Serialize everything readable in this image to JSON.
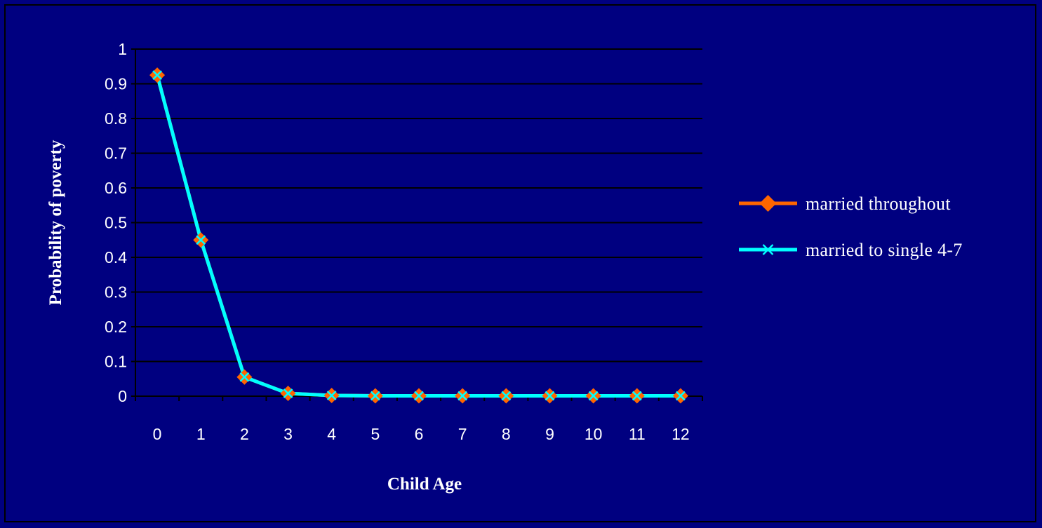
{
  "chart_data": {
    "type": "line",
    "title": "",
    "xlabel": "Child Age",
    "ylabel": "Probability of poverty",
    "x": [
      0,
      1,
      2,
      3,
      4,
      5,
      6,
      7,
      8,
      9,
      10,
      11,
      12
    ],
    "x_tick_labels": [
      "0",
      "1",
      "2",
      "3",
      "4",
      "5",
      "6",
      "7",
      "8",
      "9",
      "10",
      "11",
      "12"
    ],
    "y_tick_labels": [
      "0",
      "0.1",
      "0.2",
      "0.3",
      "0.4",
      "0.5",
      "0.6",
      "0.7",
      "0.8",
      "0.9",
      "1"
    ],
    "ylim": [
      0,
      1
    ],
    "grid": "horizontal",
    "legend_position": "right",
    "series": [
      {
        "name": "married throughout",
        "values": [
          0.925,
          0.45,
          0.055,
          0.008,
          0.002,
          0.001,
          0.001,
          0.001,
          0.001,
          0.001,
          0.001,
          0.001,
          0.001
        ],
        "color": "#ff6600",
        "marker": "diamond"
      },
      {
        "name": "married to single 4-7",
        "values": [
          0.925,
          0.45,
          0.055,
          0.008,
          0.002,
          0.001,
          0.001,
          0.001,
          0.001,
          0.001,
          0.001,
          0.001,
          0.001
        ],
        "color": "#00ffff",
        "marker": "x"
      }
    ],
    "colors": {
      "background": "#000080",
      "axis": "#000000",
      "gridline": "#000000",
      "text": "#ffffff"
    }
  }
}
